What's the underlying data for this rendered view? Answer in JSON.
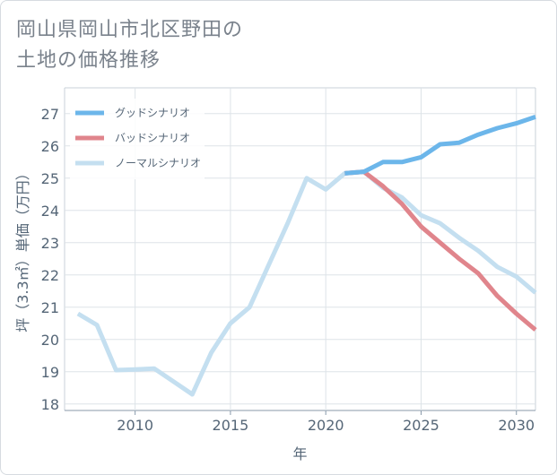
{
  "title_lines": [
    "岡山県岡山市北区野田の",
    "土地の価格推移"
  ],
  "chart_data": {
    "type": "line",
    "xlabel": "年",
    "ylabel": "坪（3.3㎡）単価（万円）",
    "xlim": [
      2006.3,
      2031
    ],
    "ylim": [
      17.8,
      27.8
    ],
    "xticks": [
      2010,
      2015,
      2020,
      2025,
      2030
    ],
    "yticks": [
      18,
      19,
      20,
      21,
      22,
      23,
      24,
      25,
      26,
      27
    ],
    "grid": true,
    "legend_position": "top-left",
    "series": [
      {
        "name": "グッドシナリオ",
        "color": "#6cb6ea",
        "x": [
          2021,
          2022,
          2023,
          2024,
          2025,
          2026,
          2027,
          2028,
          2029,
          2030,
          2031
        ],
        "y": [
          25.15,
          25.2,
          25.5,
          25.5,
          25.65,
          26.05,
          26.1,
          26.35,
          26.55,
          26.7,
          26.9
        ]
      },
      {
        "name": "バッドシナリオ",
        "color": "#e0858c",
        "x": [
          2021,
          2022,
          2023,
          2024,
          2025,
          2026,
          2027,
          2028,
          2029,
          2030,
          2031
        ],
        "y": [
          25.15,
          25.2,
          24.75,
          24.2,
          23.5,
          23.0,
          22.5,
          22.05,
          21.35,
          20.8,
          20.3
        ]
      },
      {
        "name": "ノーマルシナリオ",
        "color": "#c4dff0",
        "x": [
          2007,
          2008,
          2009,
          2010,
          2011,
          2012,
          2013,
          2014,
          2015,
          2016,
          2017,
          2018,
          2019,
          2020,
          2021,
          2022,
          2023,
          2024,
          2025,
          2026,
          2027,
          2028,
          2029,
          2030,
          2031
        ],
        "y": [
          20.8,
          20.45,
          19.05,
          19.07,
          19.1,
          18.7,
          18.3,
          19.6,
          20.5,
          21.0,
          22.3,
          23.6,
          25.0,
          24.65,
          25.15,
          25.2,
          24.7,
          24.4,
          23.85,
          23.6,
          23.15,
          22.75,
          22.25,
          21.95,
          21.45
        ]
      }
    ]
  }
}
